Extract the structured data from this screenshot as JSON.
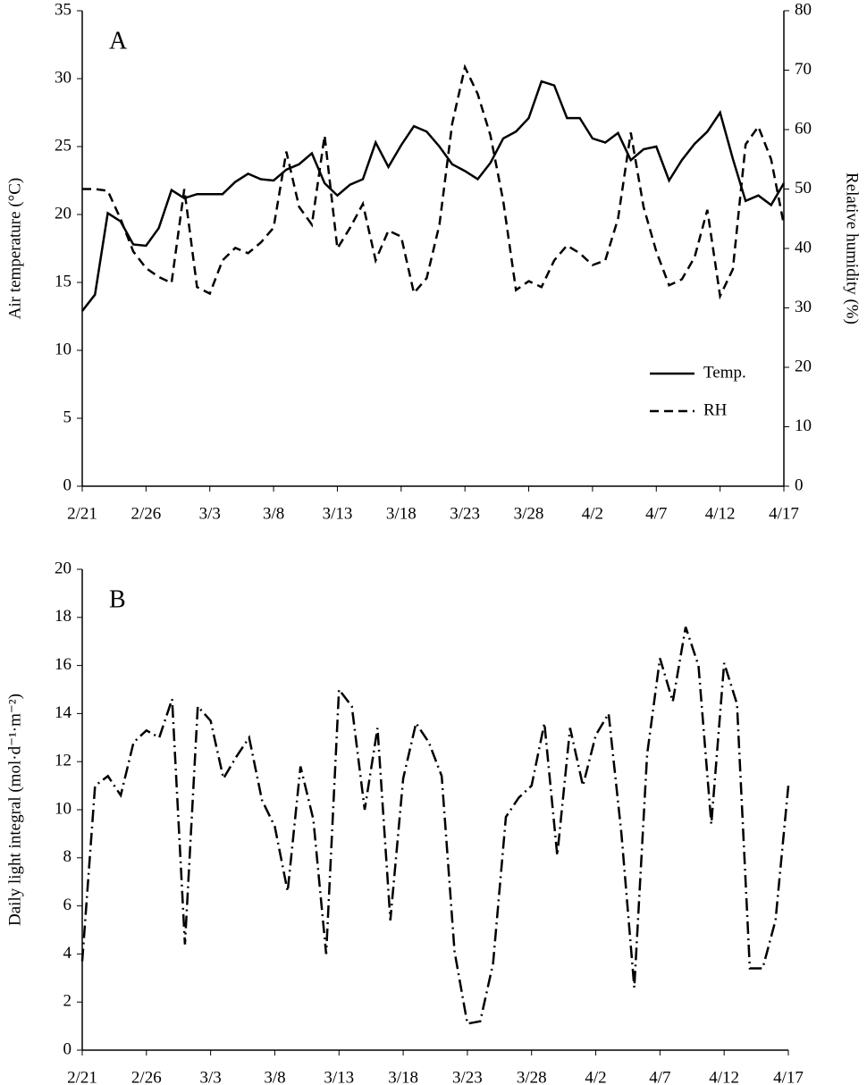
{
  "chart_data": [
    {
      "type": "line",
      "annotation": "A",
      "categories": [
        "2/21",
        null,
        null,
        null,
        null,
        "2/26",
        null,
        null,
        null,
        null,
        "3/3",
        null,
        null,
        null,
        null,
        "3/8",
        null,
        null,
        null,
        null,
        "3/13",
        null,
        null,
        null,
        null,
        "3/18",
        null,
        null,
        null,
        null,
        "3/23",
        null,
        null,
        null,
        null,
        "3/28",
        null,
        null,
        null,
        null,
        "4/2",
        null,
        null,
        null,
        null,
        "4/7",
        null,
        null,
        null,
        null,
        "4/12",
        null,
        null,
        null,
        null,
        "4/17"
      ],
      "y_label": "Air temperature (°C)",
      "y2_label": "Relative humidity (%)",
      "ylim": [
        0,
        35
      ],
      "yticks": [
        0,
        5,
        10,
        15,
        20,
        25,
        30,
        35
      ],
      "y2lim": [
        0,
        80
      ],
      "y2ticks": [
        0,
        10,
        20,
        30,
        40,
        50,
        60,
        70,
        80
      ],
      "legend": "center right",
      "series": [
        {
          "name": "Temp.",
          "color": "#000000",
          "dash": "solid",
          "values": [
            12.9,
            14.1,
            20.1,
            19.5,
            17.8,
            17.7,
            19.0,
            21.8,
            21.2,
            21.5,
            21.5,
            21.5,
            22.4,
            23.0,
            22.6,
            22.5,
            23.3,
            23.7,
            24.5,
            22.3,
            21.4,
            22.2,
            22.6,
            25.3,
            23.5,
            25.1,
            26.5,
            26.1,
            25.0,
            23.7,
            23.2,
            22.6,
            23.8,
            25.6,
            26.1,
            27.1,
            29.8,
            29.5,
            27.1,
            27.1,
            25.6,
            25.3,
            26.0,
            24.0,
            24.8,
            25.0,
            22.5,
            24.0,
            25.2,
            26.1,
            27.5,
            24.1,
            21.0,
            21.4,
            20.7,
            22.3
          ]
        },
        {
          "name": "RH",
          "color": "#000000",
          "dash": "dashed",
          "axis": "y2",
          "values": [
            50,
            50,
            49.7,
            45,
            39.5,
            36.7,
            35.2,
            34.2,
            50,
            33.5,
            32.4,
            38,
            40.1,
            39.2,
            41,
            43.5,
            56.3,
            47,
            44,
            59,
            40,
            43.5,
            47.5,
            38,
            43,
            42,
            32.5,
            35,
            44,
            61,
            70.5,
            66,
            59,
            48,
            33,
            34.5,
            33.5,
            38,
            40.5,
            39.2,
            37.2,
            38,
            45,
            59.5,
            47,
            39.5,
            33.8,
            34.8,
            38.5,
            46.5,
            32,
            36.5,
            57.5,
            60.5,
            55,
            44
          ]
        }
      ]
    },
    {
      "type": "line",
      "annotation": "B",
      "categories": [
        "2/21",
        null,
        null,
        null,
        null,
        "2/26",
        null,
        null,
        null,
        null,
        "3/3",
        null,
        null,
        null,
        null,
        "3/8",
        null,
        null,
        null,
        null,
        "3/13",
        null,
        null,
        null,
        null,
        "3/18",
        null,
        null,
        null,
        null,
        "3/23",
        null,
        null,
        null,
        null,
        "3/28",
        null,
        null,
        null,
        null,
        "4/2",
        null,
        null,
        null,
        null,
        "4/7",
        null,
        null,
        null,
        null,
        "4/12",
        null,
        null,
        null,
        null,
        "4/17"
      ],
      "y_label": "Daily light integral (mol·d⁻¹·m⁻²)",
      "ylim": [
        0,
        20
      ],
      "yticks": [
        0,
        2,
        4,
        6,
        8,
        10,
        12,
        14,
        16,
        18,
        20
      ],
      "series": [
        {
          "color": "#000000",
          "dash": "dashdot",
          "values": [
            3.7,
            11.0,
            11.4,
            10.6,
            12.8,
            13.3,
            13.0,
            14.6,
            4.4,
            14.3,
            13.7,
            11.3,
            12.2,
            13.0,
            10.4,
            9.3,
            6.6,
            11.8,
            9.6,
            4.0,
            15.0,
            14.3,
            10.0,
            13.4,
            5.4,
            11.3,
            13.6,
            12.8,
            11.4,
            4.1,
            1.1,
            1.2,
            3.6,
            9.7,
            10.5,
            11.0,
            13.6,
            8.1,
            13.4,
            11.0,
            13.1,
            14.0,
            9.0,
            2.6,
            12.3,
            16.3,
            14.5,
            17.6,
            16.0,
            9.4,
            16.1,
            14.4,
            3.4,
            3.4,
            5.4,
            11.0
          ]
        }
      ]
    }
  ]
}
